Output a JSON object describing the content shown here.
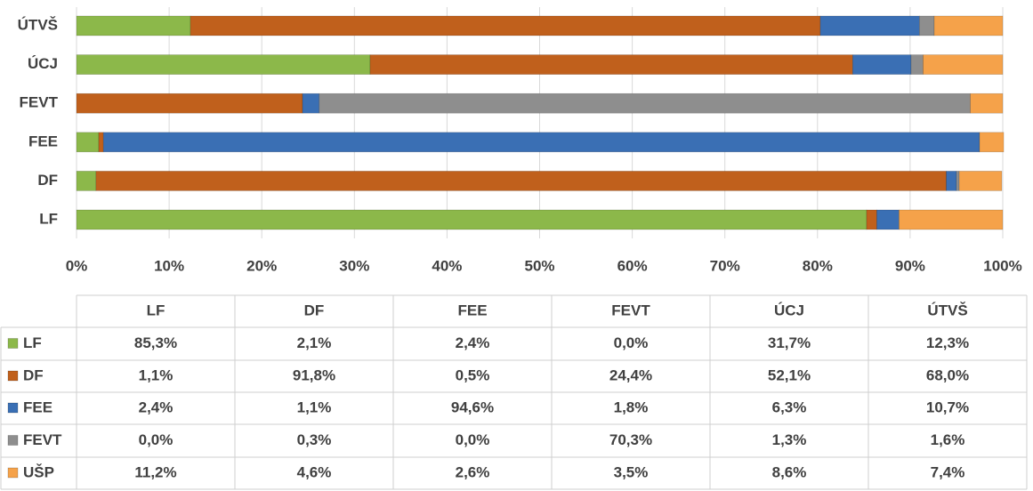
{
  "chart_data": {
    "type": "bar",
    "orientation": "horizontal",
    "stacked": true,
    "grid": true,
    "categories": [
      "LF",
      "DF",
      "FEE",
      "FEVT",
      "ÚCJ",
      "ÚTVŠ"
    ],
    "series": [
      {
        "name": "LF",
        "color": "#8cb84a",
        "values": [
          85.3,
          2.1,
          2.4,
          0.0,
          31.7,
          12.3
        ],
        "value_labels": [
          "85,3%",
          "2,1%",
          "2,4%",
          "0,0%",
          "31,7%",
          "12,3%"
        ]
      },
      {
        "name": "DF",
        "color": "#c0601c",
        "values": [
          1.1,
          91.8,
          0.5,
          24.4,
          52.1,
          68.0
        ],
        "value_labels": [
          "1,1%",
          "91,8%",
          "0,5%",
          "24,4%",
          "52,1%",
          "68,0%"
        ]
      },
      {
        "name": "FEE",
        "color": "#3a6fb4",
        "values": [
          2.4,
          1.1,
          94.6,
          1.8,
          6.3,
          10.7
        ],
        "value_labels": [
          "2,4%",
          "1,1%",
          "94,6%",
          "1,8%",
          "6,3%",
          "10,7%"
        ]
      },
      {
        "name": "FEVT",
        "color": "#8e8e8e",
        "values": [
          0.0,
          0.3,
          0.0,
          70.3,
          1.3,
          1.6
        ],
        "value_labels": [
          "0,0%",
          "0,3%",
          "0,0%",
          "70,3%",
          "1,3%",
          "1,6%"
        ]
      },
      {
        "name": "UŠP",
        "color": "#f5a24a",
        "values": [
          11.2,
          4.6,
          2.6,
          3.5,
          8.6,
          7.4
        ],
        "value_labels": [
          "11,2%",
          "4,6%",
          "2,6%",
          "3,5%",
          "8,6%",
          "7,4%"
        ]
      }
    ],
    "xlim": [
      0,
      100
    ],
    "xticks": [
      {
        "value": 0,
        "label": "0%"
      },
      {
        "value": 10,
        "label": "10%"
      },
      {
        "value": 20,
        "label": "20%"
      },
      {
        "value": 30,
        "label": "30%"
      },
      {
        "value": 40,
        "label": "40%"
      },
      {
        "value": 50,
        "label": "50%"
      },
      {
        "value": 60,
        "label": "60%"
      },
      {
        "value": 70,
        "label": "70%"
      },
      {
        "value": 80,
        "label": "80%"
      },
      {
        "value": 90,
        "label": "90%"
      },
      {
        "value": 100,
        "label": "100%"
      }
    ]
  }
}
